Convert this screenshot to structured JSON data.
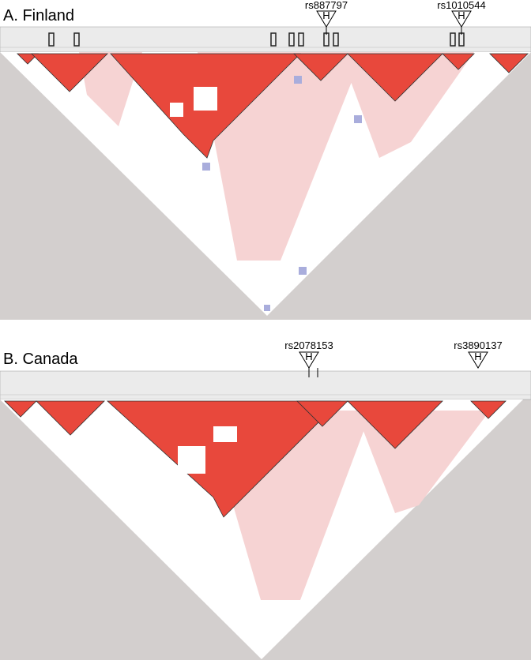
{
  "panels": [
    {
      "title": "A. Finland",
      "markers": [
        {
          "label": "rs887797",
          "symbol": "H"
        },
        {
          "label": "rs1010544",
          "symbol": "H"
        }
      ]
    },
    {
      "title": "B. Canada",
      "markers": [
        {
          "label": "rs2078153",
          "symbol": "H"
        },
        {
          "label": "rs3890137",
          "symbol": "H"
        }
      ]
    }
  ]
}
